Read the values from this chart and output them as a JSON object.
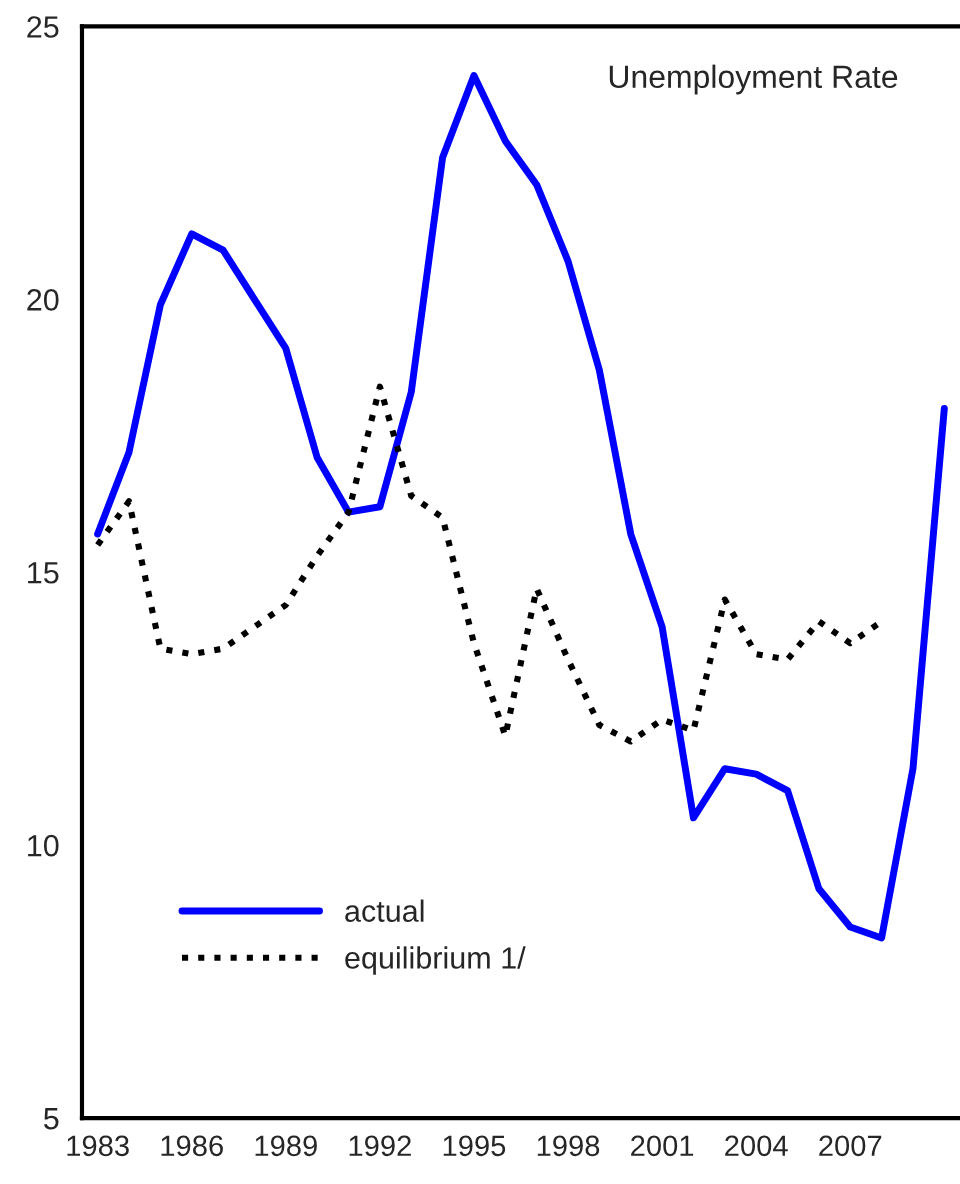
{
  "chart_data": {
    "type": "line",
    "title": "Unemployment Rate",
    "categories": [
      "1983",
      null,
      null,
      "1986",
      null,
      null,
      "1989",
      null,
      null,
      "1992",
      null,
      null,
      "1995",
      null,
      null,
      "1998",
      null,
      null,
      "2001",
      null,
      null,
      "2004",
      null,
      null,
      "2007",
      null,
      null,
      null
    ],
    "series": [
      {
        "name": "actual",
        "color": "#0000ff",
        "line_style": "solid",
        "values": [
          15.7,
          17.2,
          19.9,
          21.2,
          20.9,
          20.0,
          19.1,
          17.1,
          16.1,
          16.2,
          18.3,
          22.6,
          24.1,
          22.9,
          22.1,
          20.7,
          18.7,
          15.7,
          14.0,
          10.5,
          11.4,
          11.3,
          11.0,
          9.2,
          8.5,
          8.3,
          11.4,
          18.0
        ]
      },
      {
        "name": "equilibrium 1/",
        "color": "#000000",
        "line_style": "dotted",
        "values": [
          15.5,
          16.3,
          13.6,
          13.5,
          13.6,
          14.0,
          14.4,
          15.3,
          16.1,
          18.4,
          16.4,
          16.0,
          13.7,
          12.0,
          14.7,
          13.4,
          12.2,
          11.9,
          12.3,
          12.1,
          14.5,
          13.5,
          13.4,
          14.1,
          13.7,
          14.1,
          null,
          null
        ]
      }
    ],
    "ylim": [
      5,
      25
    ],
    "yticks": [
      5,
      10,
      15,
      20,
      25
    ],
    "grid": false,
    "legend": "bottom left",
    "marker": "none"
  }
}
